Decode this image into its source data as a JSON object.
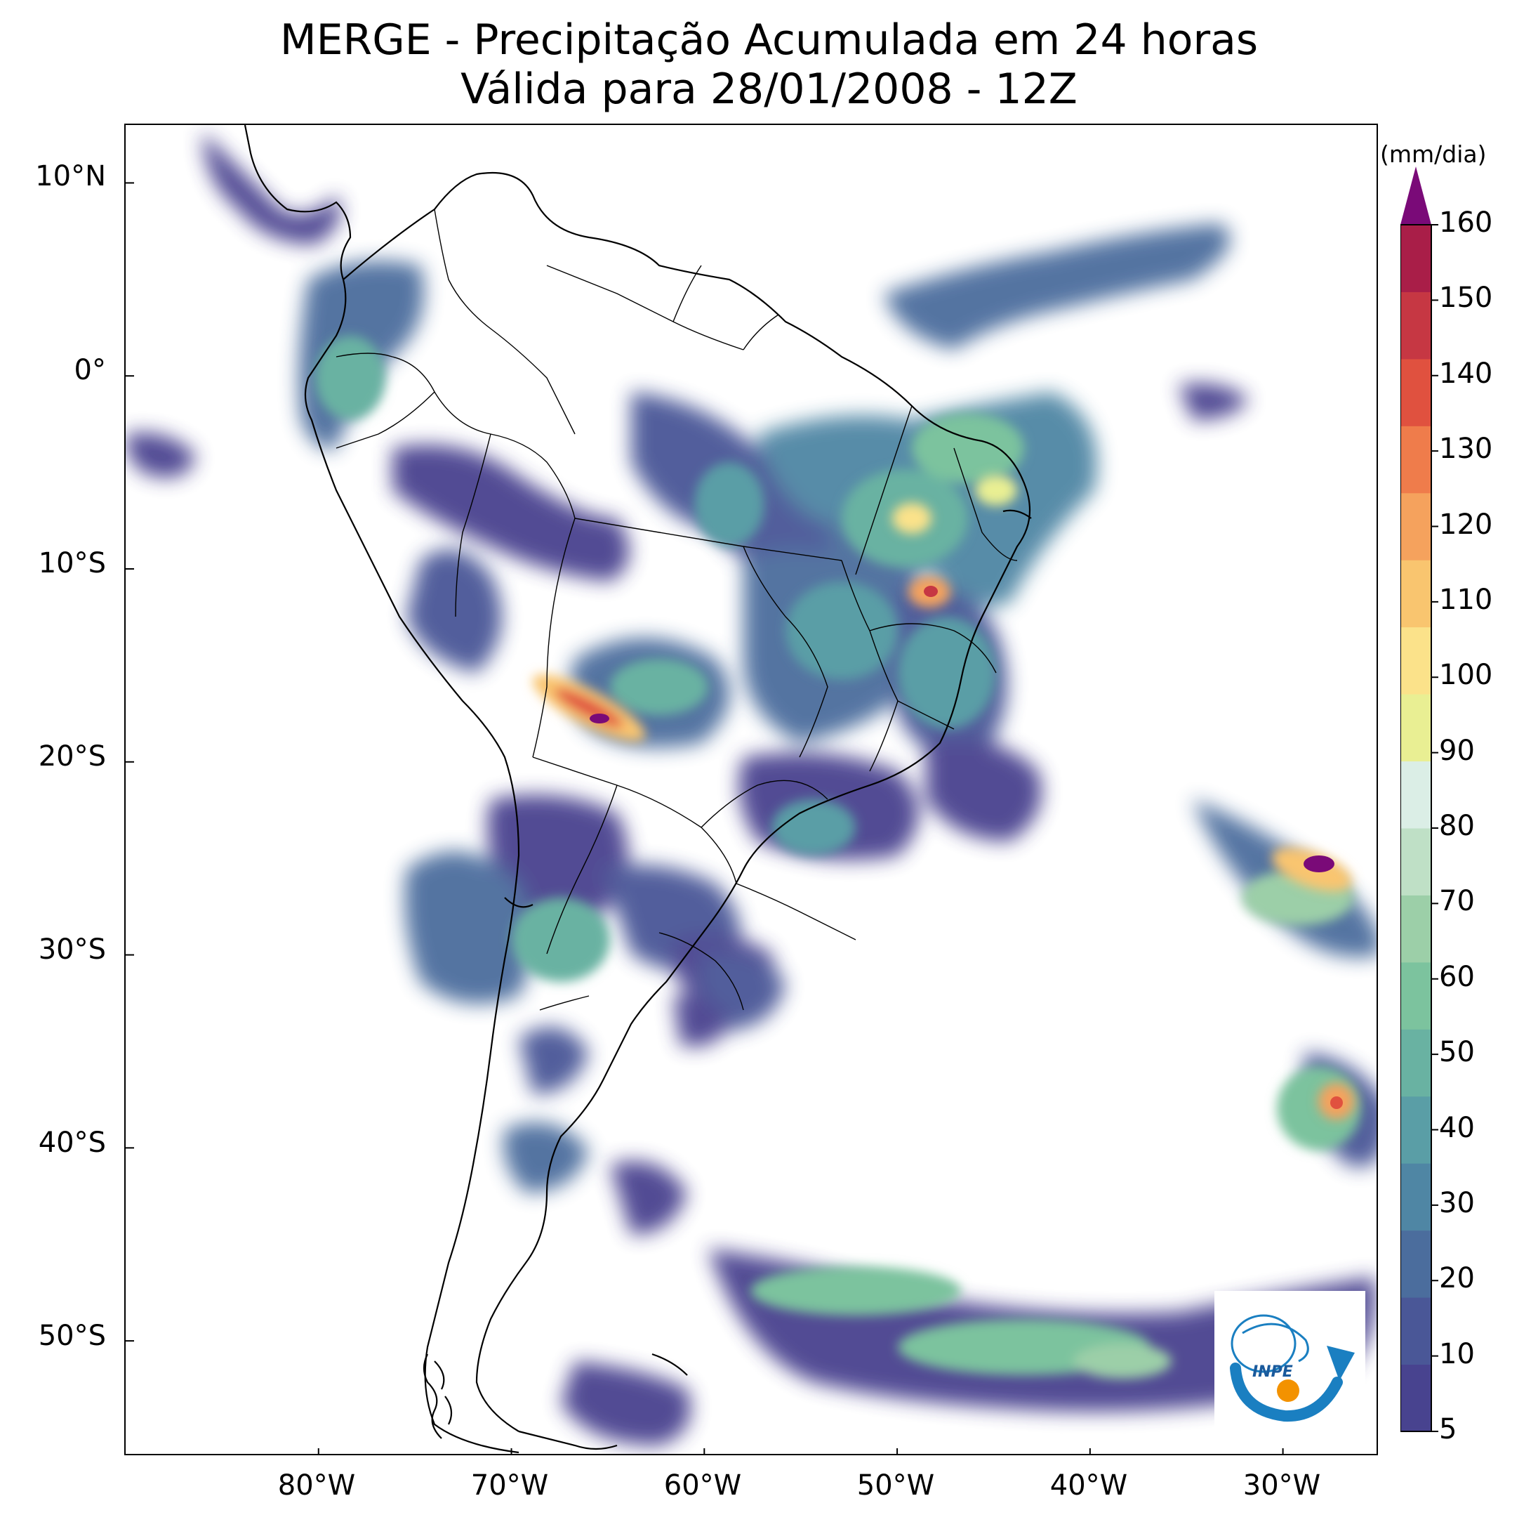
{
  "title": {
    "line1": "MERGE - Precipitação Acumulada em 24 horas",
    "line2": "Válida para 28/01/2008 - 12Z"
  },
  "map": {
    "extent_lon": [
      -90,
      -25
    ],
    "extent_lat": [
      -56,
      13
    ],
    "lat_ticks": [
      {
        "value": 10,
        "label": "10°N"
      },
      {
        "value": 0,
        "label": "0°"
      },
      {
        "value": -10,
        "label": "10°S"
      },
      {
        "value": -20,
        "label": "20°S"
      },
      {
        "value": -30,
        "label": "30°S"
      },
      {
        "value": -40,
        "label": "40°S"
      },
      {
        "value": -50,
        "label": "50°S"
      }
    ],
    "lon_ticks": [
      {
        "value": -80,
        "label": "80°W"
      },
      {
        "value": -70,
        "label": "70°W"
      },
      {
        "value": -60,
        "label": "60°W"
      },
      {
        "value": -50,
        "label": "50°W"
      },
      {
        "value": -40,
        "label": "40°W"
      },
      {
        "value": -30,
        "label": "30°W"
      }
    ],
    "precip_blobs": [
      {
        "lon": -66,
        "lat": -17,
        "rx": 3.5,
        "ry": 1.6,
        "value": 145
      },
      {
        "lon": -28,
        "lat": -26,
        "rx": 2.5,
        "ry": 1.2,
        "value": 150
      },
      {
        "lon": -48,
        "lat": -11,
        "rx": 1.2,
        "ry": 1.0,
        "value": 120
      },
      {
        "lon": -27,
        "lat": -37,
        "rx": 1.6,
        "ry": 1.6,
        "value": 110
      },
      {
        "lon": -50,
        "lat": -7,
        "rx": 2.2,
        "ry": 2.0,
        "value": 70
      },
      {
        "lon": -44,
        "lat": -6,
        "rx": 2.0,
        "ry": 1.5,
        "value": 80
      },
      {
        "lon": -67,
        "lat": -29,
        "rx": 4.0,
        "ry": 4.0,
        "value": 55
      },
      {
        "lon": -52,
        "lat": -48,
        "rx": 6.0,
        "ry": 2.0,
        "value": 45
      },
      {
        "lon": -42,
        "lat": -51,
        "rx": 8.0,
        "ry": 2.5,
        "value": 50
      },
      {
        "lon": -56,
        "lat": -13,
        "rx": 3.0,
        "ry": 3.0,
        "value": 40
      },
      {
        "lon": -48,
        "lat": -17,
        "rx": 4.0,
        "ry": 5.0,
        "value": 35
      }
    ]
  },
  "colorbar": {
    "unit": "(mm/dia)",
    "min": 5,
    "max": 160,
    "extend": "max",
    "tick_values": [
      5,
      10,
      20,
      30,
      40,
      50,
      60,
      70,
      80,
      90,
      100,
      110,
      120,
      130,
      140,
      150,
      160
    ],
    "tick_labels": [
      "5",
      "10",
      "20",
      "30",
      "40",
      "50",
      "60",
      "70",
      "80",
      "90",
      "100",
      "110",
      "120",
      "130",
      "140",
      "150",
      "160"
    ],
    "colors": [
      "#48438f",
      "#4a5797",
      "#4b6d9d",
      "#4f86a4",
      "#5a9ea6",
      "#69b2a2",
      "#7cc39e",
      "#9ccfa8",
      "#bfe0c6",
      "#dbeee6",
      "#e9ef93",
      "#fbe28a",
      "#f9c56f",
      "#f5a25d",
      "#ef7c4b",
      "#e0513f",
      "#c63743",
      "#a91e48",
      "#7a0a78"
    ]
  },
  "logo": {
    "text": "INPE"
  }
}
